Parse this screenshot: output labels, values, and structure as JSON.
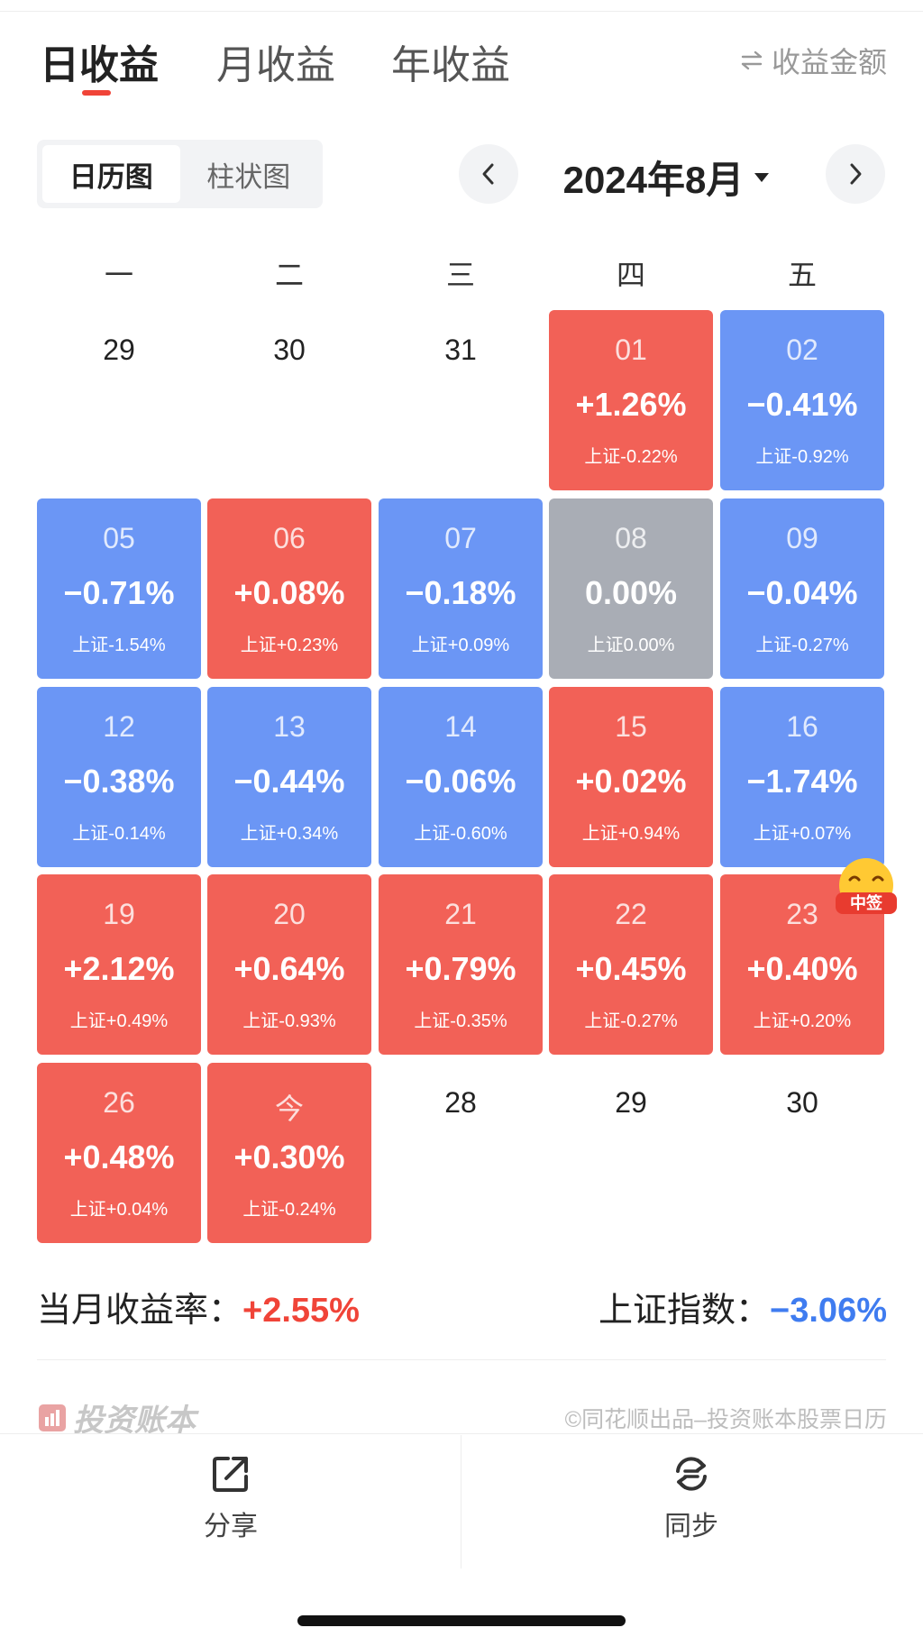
{
  "tabs": [
    {
      "label": "日收益",
      "active": true
    },
    {
      "label": "月收益",
      "active": false
    },
    {
      "label": "年收益",
      "active": false
    }
  ],
  "amount_toggle": {
    "icon": "swap-icon",
    "label": "收益金额"
  },
  "view_switch": {
    "calendar": "日历图",
    "bar": "柱状图",
    "selected": "calendar"
  },
  "month_nav": {
    "label": "2024年8月",
    "prev_icon": "chevron-left-icon",
    "next_icon": "chevron-right-icon",
    "dropdown_icon": "caret-down-icon"
  },
  "weekdays": [
    "一",
    "二",
    "三",
    "四",
    "五"
  ],
  "cells": [
    {
      "day": "29",
      "pct": "",
      "index": "",
      "tone": "empty"
    },
    {
      "day": "30",
      "pct": "",
      "index": "",
      "tone": "empty"
    },
    {
      "day": "31",
      "pct": "",
      "index": "",
      "tone": "empty"
    },
    {
      "day": "01",
      "pct": "+1.26%",
      "index": "上证-0.22%",
      "tone": "red"
    },
    {
      "day": "02",
      "pct": "−0.41%",
      "index": "上证-0.92%",
      "tone": "blue"
    },
    {
      "day": "05",
      "pct": "−0.71%",
      "index": "上证-1.54%",
      "tone": "blue"
    },
    {
      "day": "06",
      "pct": "+0.08%",
      "index": "上证+0.23%",
      "tone": "red"
    },
    {
      "day": "07",
      "pct": "−0.18%",
      "index": "上证+0.09%",
      "tone": "blue"
    },
    {
      "day": "08",
      "pct": "0.00%",
      "index": "上证0.00%",
      "tone": "gray"
    },
    {
      "day": "09",
      "pct": "−0.04%",
      "index": "上证-0.27%",
      "tone": "blue"
    },
    {
      "day": "12",
      "pct": "−0.38%",
      "index": "上证-0.14%",
      "tone": "blue"
    },
    {
      "day": "13",
      "pct": "−0.44%",
      "index": "上证+0.34%",
      "tone": "blue"
    },
    {
      "day": "14",
      "pct": "−0.06%",
      "index": "上证-0.60%",
      "tone": "blue"
    },
    {
      "day": "15",
      "pct": "+0.02%",
      "index": "上证+0.94%",
      "tone": "red"
    },
    {
      "day": "16",
      "pct": "−1.74%",
      "index": "上证+0.07%",
      "tone": "blue"
    },
    {
      "day": "19",
      "pct": "+2.12%",
      "index": "上证+0.49%",
      "tone": "red"
    },
    {
      "day": "20",
      "pct": "+0.64%",
      "index": "上证-0.93%",
      "tone": "red"
    },
    {
      "day": "21",
      "pct": "+0.79%",
      "index": "上证-0.35%",
      "tone": "red"
    },
    {
      "day": "22",
      "pct": "+0.45%",
      "index": "上证-0.27%",
      "tone": "red"
    },
    {
      "day": "23",
      "pct": "+0.40%",
      "index": "上证+0.20%",
      "tone": "red"
    },
    {
      "day": "26",
      "pct": "+0.48%",
      "index": "上证+0.04%",
      "tone": "red"
    },
    {
      "day": "今",
      "pct": "+0.30%",
      "index": "上证-0.24%",
      "tone": "red"
    },
    {
      "day": "28",
      "pct": "",
      "index": "",
      "tone": "empty"
    },
    {
      "day": "29",
      "pct": "",
      "index": "",
      "tone": "empty"
    },
    {
      "day": "30",
      "pct": "",
      "index": "",
      "tone": "empty"
    }
  ],
  "badge": {
    "label": "中签"
  },
  "summary": {
    "month_label": "当月收益率：",
    "month_value": "+2.55%",
    "index_label": "上证指数：",
    "index_value": "−3.06%"
  },
  "footer": {
    "brand": "投资账本",
    "copyright": "©同花顺出品–投资账本股票日历"
  },
  "bottom_bar": {
    "share": {
      "label": "分享",
      "icon": "share-icon"
    },
    "sync": {
      "label": "同步",
      "icon": "sync-icon"
    }
  },
  "colors": {
    "gain": "#f26157",
    "loss": "#6b96f5",
    "flat": "#a9adb5",
    "accent_red": "#f04438",
    "accent_blue": "#3f7cf0"
  }
}
